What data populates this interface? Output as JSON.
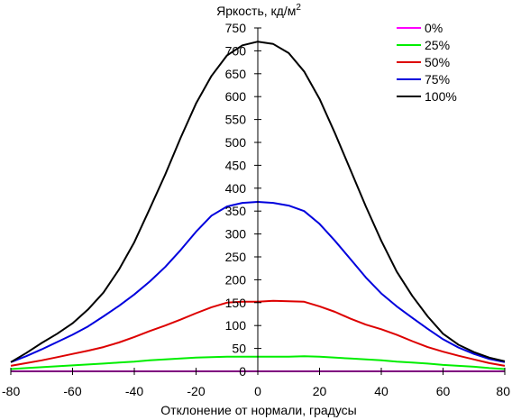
{
  "chart_data": {
    "type": "line",
    "title": "",
    "ylabel": "Яркость, кд/м",
    "ylabel_superscript": "2",
    "xlabel": "Отклонение от нормали, градусы",
    "xlim": [
      -80,
      80
    ],
    "ylim": [
      0,
      750
    ],
    "xticks": [
      -80,
      -60,
      -40,
      -20,
      0,
      20,
      40,
      60,
      80
    ],
    "yticks": [
      0,
      50,
      100,
      150,
      200,
      250,
      300,
      350,
      400,
      450,
      500,
      550,
      600,
      650,
      700,
      750
    ],
    "grid": false,
    "legend_position": "top-right",
    "x": [
      -80,
      -75,
      -70,
      -65,
      -60,
      -55,
      -50,
      -45,
      -40,
      -35,
      -30,
      -25,
      -20,
      -15,
      -10,
      -5,
      0,
      5,
      10,
      15,
      20,
      25,
      30,
      35,
      40,
      45,
      50,
      55,
      60,
      65,
      70,
      75,
      80
    ],
    "series": [
      {
        "name": "0%",
        "color": "#ff00ff",
        "values": [
          0,
          0,
          0,
          0,
          0,
          0,
          0,
          0,
          0,
          0,
          0,
          0,
          0,
          0,
          0,
          0,
          0,
          0,
          0,
          0,
          0,
          0,
          0,
          0,
          0,
          0,
          0,
          0,
          0,
          0,
          0,
          0,
          0
        ]
      },
      {
        "name": "25%",
        "color": "#00ee00",
        "values": [
          5,
          7,
          9,
          11,
          13,
          15,
          17,
          19,
          21,
          24,
          26,
          28,
          30,
          31,
          32,
          32,
          32,
          32,
          32,
          33,
          32,
          30,
          28,
          26,
          24,
          21,
          19,
          17,
          14,
          12,
          10,
          7,
          5
        ]
      },
      {
        "name": "50%",
        "color": "#dd0000",
        "values": [
          12,
          18,
          24,
          31,
          38,
          45,
          53,
          63,
          75,
          88,
          100,
          113,
          127,
          140,
          150,
          152,
          152,
          154,
          153,
          152,
          142,
          130,
          115,
          102,
          92,
          80,
          66,
          53,
          43,
          34,
          26,
          18,
          12
        ]
      },
      {
        "name": "75%",
        "color": "#0000dd",
        "values": [
          20,
          33,
          48,
          64,
          80,
          98,
          120,
          143,
          168,
          196,
          228,
          265,
          305,
          340,
          360,
          368,
          370,
          368,
          362,
          350,
          322,
          285,
          245,
          205,
          170,
          142,
          117,
          93,
          70,
          52,
          38,
          27,
          20
        ]
      },
      {
        "name": "100%",
        "color": "#000000",
        "values": [
          20,
          40,
          62,
          82,
          105,
          135,
          172,
          222,
          282,
          355,
          430,
          510,
          585,
          645,
          690,
          712,
          720,
          715,
          695,
          655,
          595,
          520,
          440,
          360,
          285,
          218,
          165,
          120,
          82,
          58,
          42,
          30,
          22
        ]
      }
    ]
  }
}
